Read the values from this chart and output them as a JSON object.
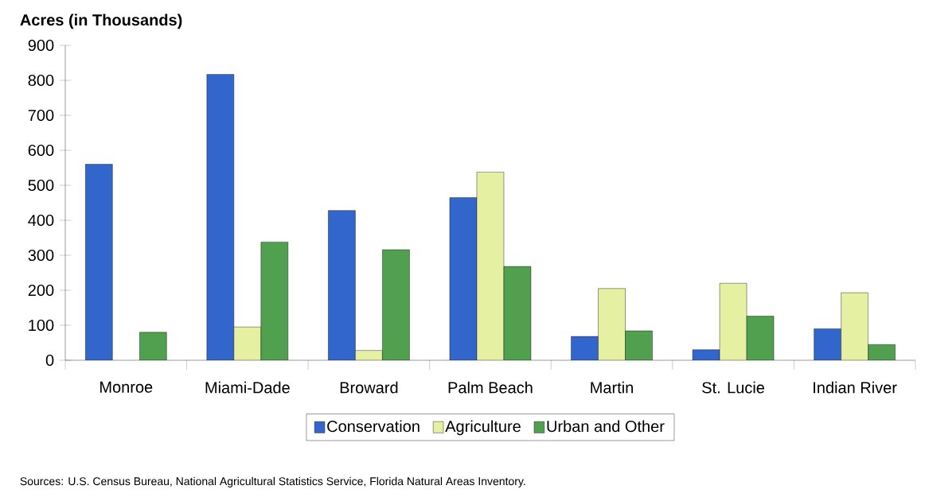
{
  "chart_data": {
    "type": "bar",
    "ylabel": "Acres (in Thousands)",
    "categories": [
      "Monroe",
      "Miami-Dade",
      "Broward",
      "Palm Beach",
      "Martin",
      "St. Lucie",
      "Indian River"
    ],
    "series": [
      {
        "name": "Conservation",
        "color": "#3366cc",
        "values": [
          560,
          817,
          428,
          465,
          68,
          30,
          90
        ]
      },
      {
        "name": "Agriculture",
        "color": "#e6f0a3",
        "values": [
          null,
          95,
          28,
          538,
          205,
          220,
          193
        ]
      },
      {
        "name": "Urban and Other",
        "color": "#50a050",
        "values": [
          80,
          338,
          316,
          268,
          84,
          126,
          45
        ]
      }
    ],
    "ylim": [
      0,
      900
    ],
    "yticks": [
      0,
      100,
      200,
      300,
      400,
      500,
      600,
      700,
      800,
      900
    ],
    "legend": "bottom",
    "annotations": [
      "Sources:  U.S. Census Bureau, National Agricultural Statistics Service, Florida Natural Areas Inventory."
    ]
  }
}
